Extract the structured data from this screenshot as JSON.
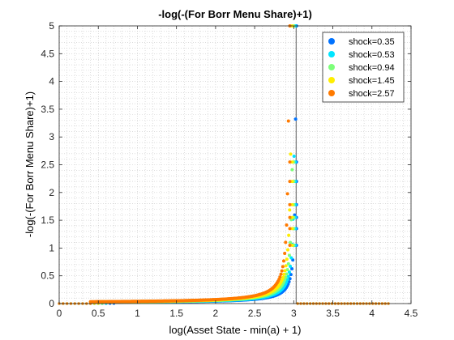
{
  "chart_data": {
    "type": "scatter",
    "title": "-log(-(For Borr Menu Share)+1)",
    "xlabel": "log(Asset State - min(a) + 1)",
    "ylabel": "-log(-(For Borr Menu Share)+1)",
    "xlim": [
      0,
      4.5
    ],
    "ylim": [
      0,
      5
    ],
    "xticks": [
      "0",
      "0.5",
      "1",
      "1.5",
      "2",
      "2.5",
      "3",
      "3.5",
      "4",
      "4.5"
    ],
    "yticks": [
      "0",
      "0.5",
      "1",
      "1.5",
      "2",
      "2.5",
      "3",
      "3.5",
      "4",
      "4.5",
      "5"
    ],
    "grid": "minor dotted",
    "legend_position": "top-right",
    "reference_line_x": 3.03,
    "series": [
      {
        "name": "shock=0.35",
        "color": "#0072ff",
        "curve_start": 0.72,
        "asymptote": 3.035
      },
      {
        "name": "shock=0.53",
        "color": "#00e5ff",
        "curve_start": 0.64,
        "asymptote": 3.02
      },
      {
        "name": "shock=0.94",
        "color": "#7dff7a",
        "curve_start": 0.58,
        "asymptote": 3.0
      },
      {
        "name": "shock=1.45",
        "color": "#ffee00",
        "curve_start": 0.5,
        "asymptote": 2.98
      },
      {
        "name": "shock=2.57",
        "color": "#ff7a00",
        "curve_start": 0.4,
        "asymptote": 2.95
      }
    ],
    "tail_after_asymptote": {
      "x_start": 3.05,
      "x_end": 4.25,
      "y": 0
    },
    "lead_zero_x_start": 0
  }
}
